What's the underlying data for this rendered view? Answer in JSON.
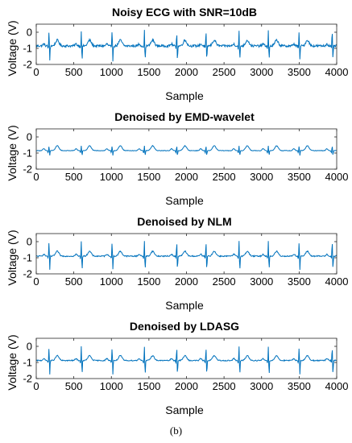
{
  "figure": {
    "caption": "(b)"
  },
  "line_color": "#0072BD",
  "chart_data": [
    {
      "type": "line",
      "title": "Noisy ECG with SNR=10dB",
      "xlabel": "Sample",
      "ylabel": "Voltage (V)",
      "xlim": [
        0,
        4000
      ],
      "ylim": [
        -2,
        0.5
      ],
      "xticks": [
        0,
        500,
        1000,
        1500,
        2000,
        2500,
        3000,
        3500,
        4000
      ],
      "yticks": [
        0,
        -1,
        -2
      ],
      "grid": false,
      "series": [
        {
          "baseline": -0.85,
          "noise": 0.07,
          "r_peak": 0.1,
          "s_trough": -1.75,
          "t_wave": 0.35,
          "beats": [
            170,
            600,
            1010,
            1440,
            1870,
            2260,
            2700,
            3090,
            3500,
            3940
          ]
        }
      ]
    },
    {
      "type": "line",
      "title": "Denoised by EMD-wavelet",
      "xlabel": "Sample",
      "ylabel": "Voltage (V)",
      "xlim": [
        0,
        4000
      ],
      "ylim": [
        -2,
        0.5
      ],
      "xticks": [
        0,
        500,
        1000,
        1500,
        2000,
        2500,
        3000,
        3500,
        4000
      ],
      "yticks": [
        0,
        -1,
        -2
      ],
      "grid": false,
      "series": [
        {
          "baseline": -0.85,
          "noise": 0.015,
          "r_peak": -0.55,
          "s_trough": -1.15,
          "t_wave": 0.3,
          "beats": [
            170,
            600,
            1010,
            1440,
            1870,
            2260,
            2700,
            3090,
            3500,
            3940
          ]
        }
      ]
    },
    {
      "type": "line",
      "title": "Denoised by NLM",
      "xlabel": "Sample",
      "ylabel": "Voltage (V)",
      "xlim": [
        0,
        4000
      ],
      "ylim": [
        -2,
        0.5
      ],
      "xticks": [
        0,
        500,
        1000,
        1500,
        2000,
        2500,
        3000,
        3500,
        4000
      ],
      "yticks": [
        0,
        -1,
        -2
      ],
      "grid": false,
      "series": [
        {
          "baseline": -0.9,
          "noise": 0.035,
          "r_peak": 0.05,
          "s_trough": -1.75,
          "t_wave": 0.3,
          "beats": [
            170,
            600,
            1010,
            1440,
            1870,
            2260,
            2700,
            3090,
            3500,
            3940
          ]
        }
      ]
    },
    {
      "type": "line",
      "title": "Denoised by LDASG",
      "xlabel": "Sample",
      "ylabel": "Voltage (V)",
      "xlim": [
        0,
        4000
      ],
      "ylim": [
        -2,
        0.5
      ],
      "xticks": [
        0,
        500,
        1000,
        1500,
        2000,
        2500,
        3000,
        3500,
        4000
      ],
      "yticks": [
        0,
        -1,
        -2
      ],
      "grid": false,
      "series": [
        {
          "baseline": -0.88,
          "noise": 0.03,
          "r_peak": 0.0,
          "s_trough": -1.75,
          "t_wave": 0.3,
          "beats": [
            170,
            600,
            1010,
            1440,
            1870,
            2260,
            2700,
            3090,
            3500,
            3940
          ]
        }
      ]
    }
  ]
}
